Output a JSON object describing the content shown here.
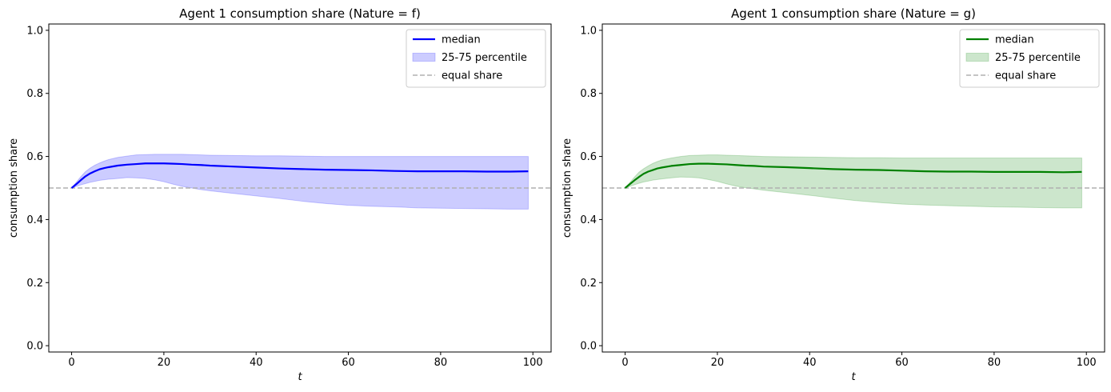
{
  "chart_data": [
    {
      "type": "line",
      "title": "Agent 1 consumption share (Nature = f)",
      "xlabel": "t",
      "ylabel": "consumption share",
      "xlim": [
        -4.95,
        103.95
      ],
      "ylim": [
        -0.02,
        1.02
      ],
      "xticks": [
        0,
        20,
        40,
        60,
        80,
        100
      ],
      "yticks": [
        0.0,
        0.2,
        0.4,
        0.6,
        0.8,
        1.0
      ],
      "xtick_labels": [
        "0",
        "20",
        "40",
        "60",
        "80",
        "100"
      ],
      "ytick_labels": [
        "0.0",
        "0.2",
        "0.4",
        "0.6",
        "0.8",
        "1.0"
      ],
      "legend_position": "top-right",
      "legend": [
        "median",
        "25-75 percentile",
        "equal share"
      ],
      "colors": {
        "line": "#0000ff",
        "band": "#0000ff",
        "reference": "#b0b0b0"
      },
      "equal_share": 0.5,
      "x": [
        0,
        1,
        2,
        3,
        4,
        5,
        6,
        7,
        8,
        10,
        12,
        14,
        16,
        18,
        20,
        22,
        24,
        26,
        28,
        30,
        35,
        40,
        45,
        50,
        55,
        60,
        65,
        70,
        75,
        80,
        85,
        90,
        95,
        99
      ],
      "series": [
        {
          "name": "median",
          "role": "line",
          "values": [
            0.5,
            0.512,
            0.525,
            0.537,
            0.546,
            0.553,
            0.559,
            0.563,
            0.566,
            0.571,
            0.574,
            0.576,
            0.578,
            0.578,
            0.578,
            0.577,
            0.576,
            0.574,
            0.573,
            0.571,
            0.568,
            0.565,
            0.562,
            0.56,
            0.558,
            0.557,
            0.556,
            0.554,
            0.553,
            0.553,
            0.553,
            0.552,
            0.552,
            0.553
          ]
        },
        {
          "name": "25-75 percentile",
          "role": "band",
          "lower": [
            0.5,
            0.505,
            0.51,
            0.514,
            0.518,
            0.521,
            0.524,
            0.526,
            0.528,
            0.53,
            0.533,
            0.532,
            0.53,
            0.526,
            0.52,
            0.512,
            0.505,
            0.5,
            0.495,
            0.491,
            0.483,
            0.475,
            0.467,
            0.458,
            0.451,
            0.445,
            0.442,
            0.44,
            0.437,
            0.436,
            0.435,
            0.434,
            0.433,
            0.433
          ],
          "upper": [
            0.5,
            0.518,
            0.536,
            0.552,
            0.563,
            0.572,
            0.579,
            0.585,
            0.59,
            0.597,
            0.601,
            0.605,
            0.606,
            0.607,
            0.607,
            0.607,
            0.607,
            0.606,
            0.605,
            0.604,
            0.603,
            0.602,
            0.602,
            0.601,
            0.6,
            0.6,
            0.6,
            0.6,
            0.6,
            0.6,
            0.6,
            0.6,
            0.6,
            0.6
          ]
        }
      ]
    },
    {
      "type": "line",
      "title": "Agent 1 consumption share (Nature = g)",
      "xlabel": "t",
      "ylabel": "consumption share",
      "xlim": [
        -4.95,
        103.95
      ],
      "ylim": [
        -0.02,
        1.02
      ],
      "xticks": [
        0,
        20,
        40,
        60,
        80,
        100
      ],
      "yticks": [
        0.0,
        0.2,
        0.4,
        0.6,
        0.8,
        1.0
      ],
      "xtick_labels": [
        "0",
        "20",
        "40",
        "60",
        "80",
        "100"
      ],
      "ytick_labels": [
        "0.0",
        "0.2",
        "0.4",
        "0.6",
        "0.8",
        "1.0"
      ],
      "legend_position": "top-right",
      "legend": [
        "median",
        "25-75 percentile",
        "equal share"
      ],
      "colors": {
        "line": "#008000",
        "band": "#008000",
        "reference": "#b0b0b0"
      },
      "equal_share": 0.5,
      "x": [
        0,
        1,
        2,
        3,
        4,
        5,
        6,
        7,
        8,
        10,
        12,
        14,
        16,
        18,
        20,
        22,
        24,
        26,
        28,
        30,
        35,
        40,
        45,
        50,
        55,
        60,
        65,
        70,
        75,
        80,
        85,
        90,
        95,
        99
      ],
      "series": [
        {
          "name": "median",
          "role": "line",
          "values": [
            0.5,
            0.512,
            0.524,
            0.535,
            0.545,
            0.552,
            0.557,
            0.562,
            0.565,
            0.57,
            0.573,
            0.576,
            0.577,
            0.577,
            0.576,
            0.575,
            0.573,
            0.571,
            0.57,
            0.568,
            0.566,
            0.563,
            0.56,
            0.558,
            0.557,
            0.555,
            0.553,
            0.552,
            0.552,
            0.551,
            0.551,
            0.551,
            0.55,
            0.551
          ]
        },
        {
          "name": "25-75 percentile",
          "role": "band",
          "lower": [
            0.5,
            0.505,
            0.51,
            0.515,
            0.519,
            0.522,
            0.525,
            0.527,
            0.529,
            0.532,
            0.535,
            0.534,
            0.532,
            0.527,
            0.521,
            0.513,
            0.506,
            0.501,
            0.497,
            0.493,
            0.485,
            0.477,
            0.468,
            0.46,
            0.454,
            0.449,
            0.446,
            0.444,
            0.442,
            0.44,
            0.439,
            0.438,
            0.437,
            0.437
          ],
          "upper": [
            0.5,
            0.517,
            0.534,
            0.55,
            0.561,
            0.57,
            0.578,
            0.584,
            0.589,
            0.595,
            0.6,
            0.603,
            0.604,
            0.605,
            0.605,
            0.604,
            0.603,
            0.602,
            0.601,
            0.6,
            0.599,
            0.598,
            0.597,
            0.596,
            0.596,
            0.595,
            0.595,
            0.595,
            0.595,
            0.595,
            0.595,
            0.595,
            0.595,
            0.595
          ]
        }
      ]
    }
  ]
}
